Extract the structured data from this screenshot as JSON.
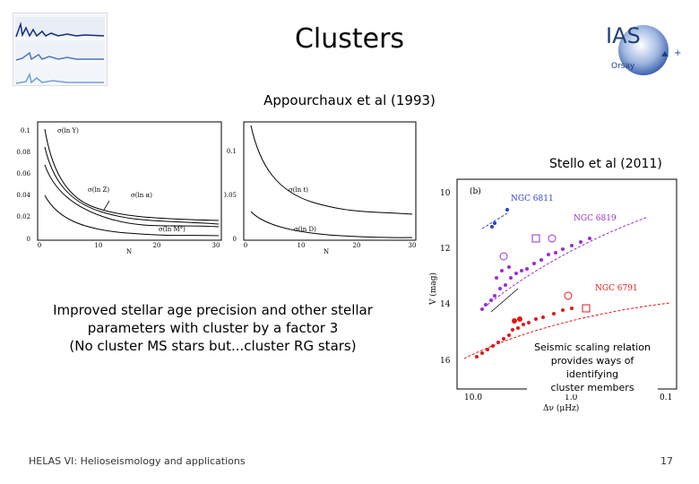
{
  "slide": {
    "title": "Clusters",
    "reference_top": "Appourchaux et al (1993)",
    "reference_right": "Stello et al (2011)",
    "body_lines": [
      "Improved stellar age precision and other stellar",
      "parameters with cluster by a factor 3",
      "(No cluster MS stars but...cluster RG stars)"
    ],
    "callout_lines": [
      "Seismic scaling relation",
      "provides ways of identifying",
      "cluster members"
    ],
    "footer": "HELAS VI: Helioseismology and applications",
    "page_number": "17"
  },
  "logo": {
    "text": "IAS",
    "subtext": "Orsay",
    "color": "#1f3f7a"
  },
  "plot_left": {
    "yticks": [
      "0.1",
      "0.08",
      "0.06",
      "0.04",
      "0.02",
      "0"
    ],
    "xticks": [
      "0",
      "10",
      "20",
      "30"
    ],
    "xlabel": "N",
    "curve_labels": [
      "σ(ln Y)",
      "σ(ln Z)",
      "σ(ln α)",
      "σ(ln M°)"
    ]
  },
  "plot_mid": {
    "yticks": [
      "0.1",
      "0.05",
      "0"
    ],
    "xticks": [
      "0",
      "10",
      "20",
      "30"
    ],
    "xlabel": "N",
    "curve_labels": [
      "σ(ln t)",
      "σ(ln D)"
    ]
  },
  "plot_right": {
    "panel_label": "(b)",
    "yaxis_label": "V  (mag)",
    "xaxis_label": "Δν  (μHz)",
    "yticks": [
      "10",
      "12",
      "14",
      "16"
    ],
    "xticks": [
      "10.0",
      "1.0",
      "0.1"
    ],
    "clusters": [
      {
        "name": "NGC 6811",
        "color": "#2d3fc8"
      },
      {
        "name": "NGC 6819",
        "color": "#9a2fd0"
      },
      {
        "name": "NGC 6791",
        "color": "#e01818"
      }
    ]
  }
}
